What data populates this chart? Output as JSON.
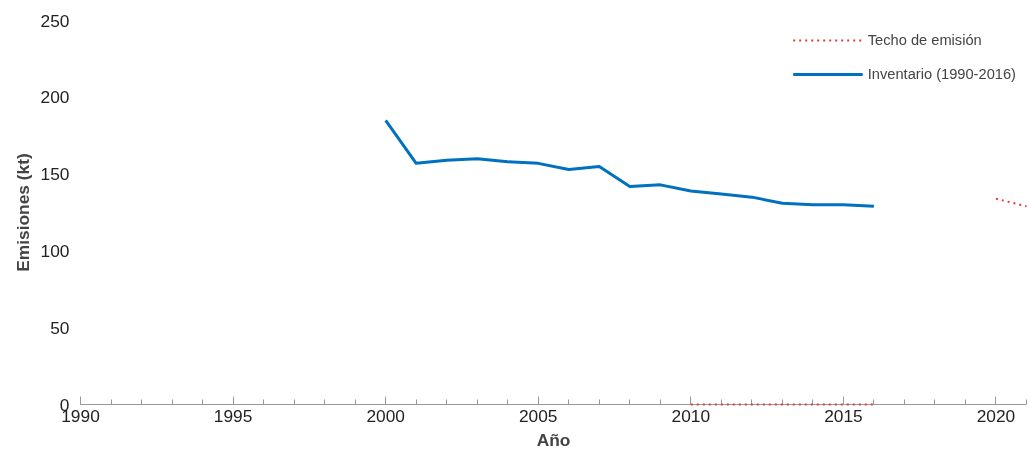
{
  "chart_data": {
    "type": "line",
    "xlabel": "Año",
    "ylabel": "Emisiones (kt)",
    "xlim": [
      1990,
      2021
    ],
    "xticks": [
      1990,
      1995,
      2000,
      2005,
      2010,
      2015,
      2020
    ],
    "ylim": [
      0,
      250
    ],
    "yticks": [
      0,
      50,
      100,
      150,
      200,
      250
    ],
    "series": [
      {
        "name": "Techo de emisión",
        "color": "#e03c3c",
        "line_style": "dotted",
        "x": [
          2010,
          2011,
          2012,
          2013,
          2014,
          2015,
          2016,
          2017,
          2020,
          2021
        ],
        "values": [
          0,
          0,
          0,
          0,
          0,
          0,
          0,
          null,
          134,
          129
        ]
      },
      {
        "name": "Inventario (1990-2016)",
        "color": "#0070c0",
        "line_style": "solid",
        "x": [
          2000,
          2001,
          2002,
          2003,
          2004,
          2005,
          2006,
          2007,
          2008,
          2009,
          2010,
          2011,
          2012,
          2013,
          2014,
          2015,
          2016
        ],
        "values": [
          185,
          157,
          159,
          160,
          158,
          157,
          153,
          155,
          142,
          143,
          139,
          137,
          135,
          131,
          130,
          130,
          129
        ]
      }
    ],
    "grid": false,
    "legend": "top right",
    "marker": "none"
  }
}
